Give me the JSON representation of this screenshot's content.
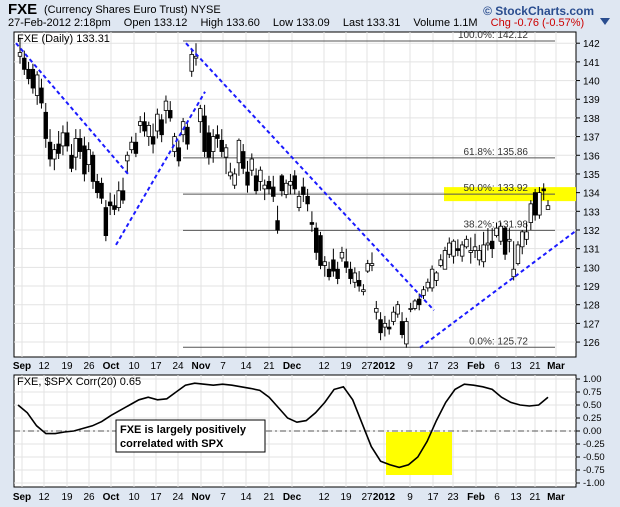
{
  "header": {
    "symbol": "FXE",
    "name": "(Currency Shares Euro Trust)",
    "exchange": "NYSE",
    "date": "27-Feb-2012 2:18pm",
    "open": "Open 133.12",
    "high": "High 133.60",
    "low": "Low 133.09",
    "last": "Last 133.31",
    "volume": "Volume 1.1M",
    "chg": "Chg -0.76 (-0.57%)",
    "brand": "© StockCharts.com",
    "chg_color": "#cc0000"
  },
  "chart_data": [
    {
      "type": "candlestick",
      "legend": "FXE (Daily) 133.31",
      "ylim": [
        125.2,
        142.6
      ],
      "y_ticks": [
        126,
        127,
        128,
        129,
        130,
        131,
        132,
        133,
        134,
        135,
        136,
        137,
        138,
        139,
        140,
        141,
        142
      ],
      "x_ticks": [
        "Sep",
        "12",
        "19",
        "26",
        "Oct",
        "10",
        "17",
        "24",
        "Nov",
        "7",
        "14",
        "21",
        "Dec",
        "12",
        "19",
        "27",
        "2012",
        "9",
        "17",
        "23",
        "Feb",
        "6",
        "13",
        "21",
        "Mar"
      ],
      "ohlc": [
        [
          141.3,
          142.3,
          140.9,
          141.5
        ],
        [
          141.2,
          141.6,
          140.3,
          140.6
        ],
        [
          140.6,
          141.0,
          139.8,
          140.1
        ],
        [
          140.6,
          140.9,
          139.3,
          139.6
        ],
        [
          139.2,
          140.5,
          138.7,
          140.3
        ],
        [
          139.6,
          140.1,
          138.5,
          138.8
        ],
        [
          138.3,
          138.8,
          136.4,
          136.9
        ],
        [
          136.7,
          137.4,
          135.4,
          135.8
        ],
        [
          135.8,
          136.6,
          135.2,
          136.3
        ],
        [
          136.6,
          137.3,
          135.8,
          136.1
        ],
        [
          136.5,
          137.6,
          136.0,
          137.2
        ],
        [
          137.2,
          137.8,
          136.2,
          136.5
        ],
        [
          136.0,
          136.6,
          135.1,
          135.3
        ],
        [
          135.9,
          137.4,
          135.2,
          136.9
        ],
        [
          136.9,
          137.4,
          135.8,
          136.2
        ],
        [
          136.5,
          137.0,
          134.6,
          135.0
        ],
        [
          135.5,
          136.7,
          135.1,
          136.3
        ],
        [
          136.0,
          136.2,
          134.2,
          134.6
        ],
        [
          134.6,
          135.0,
          133.7,
          134.0
        ],
        [
          134.5,
          134.8,
          133.4,
          133.7
        ],
        [
          133.2,
          133.6,
          131.4,
          131.7
        ],
        [
          133.5,
          134.0,
          132.8,
          133.3
        ],
        [
          133.3,
          133.9,
          132.8,
          133.1
        ],
        [
          133.2,
          134.6,
          133.0,
          134.1
        ],
        [
          134.1,
          134.8,
          133.4,
          133.6
        ],
        [
          135.7,
          136.2,
          135.1,
          136.0
        ],
        [
          136.3,
          137.0,
          136.1,
          136.7
        ],
        [
          136.7,
          137.2,
          135.9,
          136.1
        ],
        [
          137.6,
          138.1,
          137.2,
          137.8
        ],
        [
          137.8,
          138.3,
          137.0,
          137.3
        ],
        [
          137.0,
          137.8,
          136.5,
          137.6
        ],
        [
          137.0,
          137.7,
          136.1,
          136.6
        ],
        [
          137.3,
          138.5,
          136.9,
          138.2
        ],
        [
          137.9,
          138.2,
          136.7,
          137.1
        ],
        [
          138.4,
          139.2,
          137.7,
          138.9
        ],
        [
          138.4,
          138.9,
          137.8,
          138.0
        ],
        [
          136.2,
          137.2,
          135.9,
          137.0
        ],
        [
          136.4,
          136.8,
          135.4,
          135.7
        ],
        [
          137.1,
          138.0,
          136.7,
          137.8
        ],
        [
          137.5,
          137.8,
          136.3,
          136.6
        ],
        [
          140.5,
          141.7,
          140.2,
          141.4
        ],
        [
          141.2,
          142.0,
          140.8,
          141.3
        ],
        [
          137.8,
          138.7,
          137.2,
          138.5
        ],
        [
          138.1,
          138.7,
          135.9,
          136.2
        ],
        [
          137.2,
          137.6,
          135.5,
          135.9
        ],
        [
          136.2,
          137.4,
          135.6,
          137.0
        ],
        [
          137.1,
          137.6,
          136.4,
          136.9
        ],
        [
          136.8,
          137.4,
          135.9,
          136.2
        ],
        [
          135.9,
          136.6,
          135.0,
          136.4
        ],
        [
          134.9,
          135.6,
          134.7,
          135.1
        ],
        [
          134.4,
          135.3,
          134.2,
          135.0
        ],
        [
          135.6,
          136.9,
          134.9,
          136.8
        ],
        [
          136.2,
          136.6,
          135.0,
          135.3
        ],
        [
          135.1,
          135.7,
          134.0,
          134.4
        ],
        [
          135.2,
          136.1,
          134.9,
          135.8
        ],
        [
          134.9,
          135.3,
          133.9,
          134.1
        ],
        [
          134.6,
          135.4,
          134.1,
          135.2
        ],
        [
          134.2,
          134.7,
          133.6,
          134.4
        ],
        [
          134.6,
          134.9,
          133.9,
          134.2
        ],
        [
          134.3,
          134.9,
          133.5,
          133.8
        ],
        [
          132.5,
          133.3,
          131.8,
          132.0
        ],
        [
          134.9,
          135.0,
          133.8,
          134.1
        ],
        [
          133.9,
          134.7,
          133.7,
          134.5
        ],
        [
          134.4,
          135.0,
          133.9,
          134.6
        ],
        [
          134.9,
          135.2,
          133.9,
          134.2
        ],
        [
          133.2,
          134.1,
          133.0,
          133.8
        ],
        [
          134.3,
          134.8,
          133.5,
          133.9
        ],
        [
          133.8,
          134.2,
          133.0,
          133.4
        ],
        [
          132.4,
          133.0,
          131.9,
          132.3
        ],
        [
          132.1,
          132.4,
          130.4,
          130.8
        ],
        [
          131.7,
          131.9,
          129.9,
          130.1
        ],
        [
          130.1,
          130.6,
          129.5,
          130.3
        ],
        [
          129.9,
          130.3,
          129.3,
          129.5
        ],
        [
          130.4,
          131.0,
          129.5,
          129.8
        ],
        [
          129.9,
          130.3,
          129.1,
          129.4
        ],
        [
          130.5,
          131.1,
          130.3,
          130.8
        ],
        [
          130.3,
          131.0,
          129.7,
          130.0
        ],
        [
          129.9,
          130.3,
          129.1,
          129.4
        ],
        [
          129.2,
          130.0,
          128.9,
          129.7
        ],
        [
          129.3,
          129.8,
          128.7,
          129.0
        ],
        [
          128.7,
          129.1,
          128.5,
          128.8
        ],
        [
          129.8,
          130.4,
          129.7,
          130.2
        ],
        [
          130.1,
          130.8,
          129.8,
          130.2
        ],
        [
          127.6,
          128.2,
          127.2,
          127.8
        ],
        [
          127.2,
          127.6,
          126.1,
          126.5
        ],
        [
          126.8,
          127.4,
          126.3,
          127.0
        ],
        [
          126.8,
          127.2,
          126.4,
          126.7
        ],
        [
          127.1,
          127.9,
          126.9,
          127.6
        ],
        [
          127.5,
          128.2,
          127.3,
          128.0
        ],
        [
          127.1,
          127.6,
          126.2,
          126.4
        ],
        [
          125.9,
          127.3,
          125.7,
          127.1
        ],
        [
          127.8,
          128.1,
          127.6,
          127.8
        ],
        [
          127.8,
          128.3,
          127.7,
          128.2
        ],
        [
          128.3,
          128.6,
          127.7,
          128.0
        ],
        [
          128.5,
          129.0,
          128.3,
          128.8
        ],
        [
          128.9,
          129.4,
          128.7,
          129.2
        ],
        [
          128.9,
          130.1,
          128.7,
          129.9
        ],
        [
          129.3,
          129.8,
          129.0,
          129.7
        ],
        [
          130.1,
          130.7,
          130.0,
          130.4
        ],
        [
          129.9,
          131.1,
          129.9,
          130.9
        ],
        [
          130.7,
          131.6,
          130.5,
          131.3
        ],
        [
          130.6,
          131.5,
          130.2,
          131.4
        ],
        [
          131.0,
          131.5,
          130.6,
          130.9
        ],
        [
          130.6,
          131.4,
          130.3,
          131.2
        ],
        [
          131.1,
          131.7,
          131.0,
          131.5
        ],
        [
          130.8,
          131.6,
          130.2,
          130.9
        ],
        [
          130.9,
          131.8,
          130.5,
          131.1
        ],
        [
          130.4,
          131.2,
          130.1,
          130.9
        ],
        [
          130.3,
          131.9,
          130.0,
          131.2
        ],
        [
          131.2,
          132.1,
          130.9,
          131.3
        ],
        [
          131.4,
          132.1,
          130.5,
          131.0
        ],
        [
          131.7,
          132.4,
          131.6,
          132.1
        ],
        [
          131.4,
          132.4,
          131.2,
          132.2
        ],
        [
          132.1,
          132.2,
          130.4,
          130.7
        ],
        [
          131.4,
          132.1,
          130.8,
          131.5
        ],
        [
          129.5,
          131.4,
          129.3,
          129.9
        ],
        [
          130.2,
          131.4,
          130.1,
          131.2
        ],
        [
          131.1,
          132.0,
          130.7,
          131.9
        ],
        [
          131.5,
          132.4,
          131.2,
          131.9
        ],
        [
          132.4,
          133.6,
          132.0,
          133.4
        ],
        [
          134.0,
          134.2,
          132.5,
          132.8
        ],
        [
          132.8,
          134.3,
          132.6,
          134.0
        ],
        [
          134.2,
          134.5,
          133.6,
          134.1
        ],
        [
          133.1,
          133.6,
          133.1,
          133.3
        ]
      ],
      "fibonacci": [
        {
          "label": "100.0%: 142.12",
          "value": 142.12
        },
        {
          "label": "61.8%: 135.86",
          "value": 135.86
        },
        {
          "label": "50.0%: 133.92",
          "value": 133.92
        },
        {
          "label": "38.2%: 131.98",
          "value": 131.98
        },
        {
          "label": "0.0%: 125.72",
          "value": 125.72
        }
      ],
      "highlight_color": "#ffff00",
      "trendline_color": "#1a1aff"
    },
    {
      "type": "line",
      "legend": "FXE, $SPX Corr(20) 0.65",
      "ylim": [
        -1.0,
        1.0
      ],
      "y_ticks": [
        "1.00",
        "0.75",
        "0.50",
        "0.25",
        "0.00",
        "-0.25",
        "-0.50",
        "-0.75",
        "-1.00"
      ],
      "annotation": "FXE is largely positively correlated with SPX",
      "series": [
        {
          "values": [
            0.5,
            0.35,
            0.1,
            -0.05,
            -0.05,
            -0.02,
            0.0,
            0.05,
            0.1,
            0.18,
            0.3,
            0.4,
            0.5,
            0.6,
            0.65,
            0.6,
            0.62,
            0.75,
            0.88,
            0.92,
            0.9,
            0.88,
            0.9,
            0.88,
            0.85,
            0.82,
            0.78,
            0.65,
            0.45,
            0.25,
            0.17,
            0.2,
            0.35,
            0.55,
            0.8,
            0.85,
            0.6,
            0.15,
            -0.3,
            -0.58,
            -0.65,
            -0.7,
            -0.65,
            -0.5,
            -0.2,
            0.2,
            0.55,
            0.8,
            0.9,
            0.88,
            0.85,
            0.8,
            0.65,
            0.55,
            0.5,
            0.48,
            0.5,
            0.65
          ]
        }
      ]
    }
  ]
}
